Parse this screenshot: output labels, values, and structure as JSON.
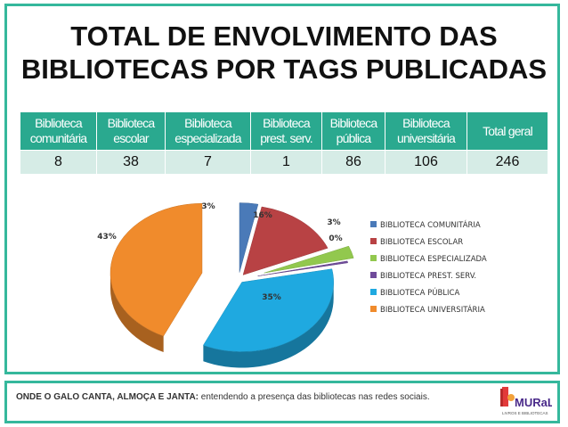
{
  "title_line1": "TOTAL DE ENVOLVIMENTO DAS",
  "title_line2": "BIBLIOTECAS POR TAGS PUBLICADAS",
  "table": {
    "headers": [
      [
        "Biblioteca",
        "comunitária"
      ],
      [
        "Biblioteca",
        "escolar"
      ],
      [
        "Biblioteca",
        "especializada"
      ],
      [
        "Biblioteca",
        "prest. serv."
      ],
      [
        "Biblioteca",
        "pública"
      ],
      [
        "Biblioteca",
        "universitária"
      ],
      [
        "Total geral"
      ]
    ],
    "values": [
      "8",
      "38",
      "7",
      "1",
      "86",
      "106",
      "246"
    ]
  },
  "chart_data": {
    "type": "pie",
    "title": "",
    "categories": [
      "BIBLIOTECA COMUNITÁRIA",
      "BIBLIOTECA ESCOLAR",
      "BIBLIOTECA ESPECIALIZADA",
      "BIBLIOTECA PREST. SERV.",
      "BIBLIOTECA PÚBLICA",
      "BIBLIOTECA UNIVERSITÁRIA"
    ],
    "values": [
      8,
      38,
      7,
      1,
      86,
      106
    ],
    "labels": [
      "3%",
      "16%",
      "3%",
      "0%",
      "35%",
      "43%"
    ],
    "colors": [
      "#4a7ab8",
      "#b84244",
      "#92c84e",
      "#6f4b9a",
      "#1fa9e0",
      "#f08b2c"
    ],
    "legend_position": "right"
  },
  "footer": {
    "bold": "ONDE O GALO CANTA, ALMOÇA E JANTA:",
    "text": "entendendo a presença das bibliotecas nas redes sociais."
  },
  "logo_text": "MURaL",
  "logo_sub": "LIVROS E BIBLIOTECAS"
}
